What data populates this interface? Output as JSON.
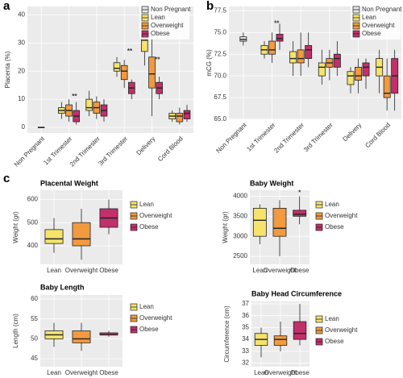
{
  "chart_data": [
    {
      "type": "box",
      "panel_label": "a",
      "y_label": "Placenta (%)",
      "categories": [
        "Non Pregnant",
        "1st Trimester",
        "2nd Trimester",
        "3rd Trimester",
        "Delivery",
        "Cord Blood"
      ],
      "ylim": [
        -2,
        43
      ],
      "yticks": [
        0,
        10,
        20,
        30,
        40
      ],
      "grid": true,
      "legend": "top-right",
      "annotations": [
        "**",
        "**",
        "**"
      ],
      "series": [
        {
          "name": "Non Pregnant",
          "color": "#e6e6e6",
          "values": [
            {
              "min": 0,
              "q1": 0,
              "median": 0,
              "q3": 0,
              "max": 0
            },
            null,
            null,
            null,
            null,
            null
          ]
        },
        {
          "name": "Lean",
          "color": "#f6e36c",
          "values": [
            null,
            {
              "min": 3,
              "q1": 5,
              "median": 6,
              "q3": 7,
              "max": 9
            },
            {
              "min": 4,
              "q1": 6,
              "median": 7,
              "q3": 10,
              "max": 13
            },
            {
              "min": 18,
              "q1": 20,
              "median": 21,
              "q3": 23,
              "max": 25
            },
            {
              "min": 22,
              "q1": 27,
              "median": 31,
              "q3": 33,
              "max": 35
            },
            {
              "min": 2,
              "q1": 3,
              "median": 4,
              "q3": 5,
              "max": 6
            }
          ]
        },
        {
          "name": "Overweight",
          "color": "#f29a3f",
          "values": [
            null,
            {
              "min": 2,
              "q1": 4,
              "median": 6,
              "q3": 8,
              "max": 10
            },
            {
              "min": 3,
              "q1": 5,
              "median": 7,
              "q3": 9,
              "max": 11
            },
            {
              "min": 14,
              "q1": 17,
              "median": 20,
              "q3": 22,
              "max": 24
            },
            {
              "min": 4,
              "q1": 14,
              "median": 19,
              "q3": 25,
              "max": 33
            },
            {
              "min": 1,
              "q1": 2,
              "median": 4,
              "q3": 5,
              "max": 7
            }
          ]
        },
        {
          "name": "Obese",
          "color": "#c2306b",
          "values": [
            null,
            {
              "min": 1,
              "q1": 2,
              "median": 4,
              "q3": 6,
              "max": 9
            },
            {
              "min": 2,
              "q1": 4,
              "median": 6,
              "q3": 8,
              "max": 10
            },
            {
              "min": 10,
              "q1": 12,
              "median": 14,
              "q3": 16,
              "max": 17
            },
            {
              "min": 10,
              "q1": 12,
              "median": 14,
              "q3": 16,
              "max": 18
            },
            {
              "min": 2,
              "q1": 3,
              "median": 5,
              "q3": 6,
              "max": 8
            }
          ]
        }
      ]
    },
    {
      "type": "box",
      "panel_label": "b",
      "y_label": "mCG (%)",
      "categories": [
        "Non Pregnant",
        "1st Trimester",
        "2nd Trimester",
        "3rd Trimester",
        "Delivery",
        "Cord Blood"
      ],
      "ylim": [
        65,
        78
      ],
      "yticks": [
        {
          "value": 65,
          "label": "65.0"
        },
        {
          "value": 67.5,
          "label": "67.5"
        },
        {
          "value": 70,
          "label": "70.0"
        },
        {
          "value": 72.5,
          "label": "72.5"
        },
        {
          "value": 75,
          "label": "75.0"
        },
        {
          "value": 77.5,
          "label": "77.5"
        }
      ],
      "grid": true,
      "legend": "top-right",
      "annotations": [
        "**"
      ],
      "series": [
        {
          "name": "Non Pregnant",
          "color": "#e6e6e6",
          "values": [
            {
              "min": 73.5,
              "q1": 74,
              "median": 74.2,
              "q3": 74.5,
              "max": 75
            },
            null,
            null,
            null,
            null,
            null
          ]
        },
        {
          "name": "Lean",
          "color": "#f6e36c",
          "values": [
            null,
            {
              "min": 72,
              "q1": 72.5,
              "median": 73,
              "q3": 73.5,
              "max": 74
            },
            {
              "min": 70,
              "q1": 71.5,
              "median": 72,
              "q3": 72.8,
              "max": 74
            },
            {
              "min": 69,
              "q1": 70,
              "median": 71,
              "q3": 71.5,
              "max": 73
            },
            {
              "min": 68,
              "q1": 69,
              "median": 70,
              "q3": 70.5,
              "max": 71
            },
            {
              "min": 68,
              "q1": 70,
              "median": 71,
              "q3": 72,
              "max": 73
            }
          ]
        },
        {
          "name": "Overweight",
          "color": "#f29a3f",
          "values": [
            null,
            {
              "min": 71.5,
              "q1": 72.5,
              "median": 73,
              "q3": 74,
              "max": 75
            },
            {
              "min": 70,
              "q1": 71.5,
              "median": 72,
              "q3": 73,
              "max": 75
            },
            {
              "min": 69.5,
              "q1": 71,
              "median": 71.5,
              "q3": 72,
              "max": 73
            },
            {
              "min": 68,
              "q1": 69.5,
              "median": 70,
              "q3": 71,
              "max": 72
            },
            {
              "min": 66,
              "q1": 67.5,
              "median": 68,
              "q3": 70,
              "max": 72
            }
          ]
        },
        {
          "name": "Obese",
          "color": "#c2306b",
          "values": [
            null,
            {
              "min": 73,
              "q1": 74,
              "median": 74.3,
              "q3": 74.8,
              "max": 76
            },
            {
              "min": 71,
              "q1": 72,
              "median": 73,
              "q3": 73.5,
              "max": 75
            },
            {
              "min": 70,
              "q1": 71,
              "median": 72,
              "q3": 72.5,
              "max": 74
            },
            {
              "min": 68.5,
              "q1": 70,
              "median": 71,
              "q3": 71.5,
              "max": 72
            },
            {
              "min": 66,
              "q1": 68,
              "median": 70,
              "q3": 72,
              "max": 73
            }
          ]
        }
      ]
    },
    {
      "type": "box",
      "panel_label": "c",
      "title": "Placental Weight",
      "y_label": "Weight (gr)",
      "categories": [
        "Lean",
        "Overweight",
        "Obese"
      ],
      "colors": [
        "#f6e36c",
        "#f29a3f",
        "#c2306b"
      ],
      "ylim": [
        320,
        640
      ],
      "yticks": [
        400,
        500,
        600
      ],
      "grid": true,
      "legend": "right",
      "values": [
        {
          "min": 370,
          "q1": 410,
          "median": 430,
          "q3": 470,
          "max": 520
        },
        {
          "min": 340,
          "q1": 400,
          "median": 430,
          "q3": 500,
          "max": 560
        },
        {
          "min": 450,
          "q1": 480,
          "median": 520,
          "q3": 560,
          "max": 600
        }
      ]
    },
    {
      "type": "box",
      "title": "Baby Weight",
      "y_label": "Weight (gr)",
      "categories": [
        "Lean",
        "Overweight",
        "Obese"
      ],
      "colors": [
        "#f6e36c",
        "#f29a3f",
        "#c2306b"
      ],
      "ylim": [
        2300,
        4150
      ],
      "yticks": [
        2500,
        3000,
        3500,
        4000
      ],
      "grid": true,
      "legend": "right",
      "annotations": [
        "*"
      ],
      "values": [
        {
          "min": 2800,
          "q1": 3000,
          "median": 3400,
          "q3": 3700,
          "max": 3800
        },
        {
          "min": 2500,
          "q1": 3000,
          "median": 3200,
          "q3": 3700,
          "max": 3900
        },
        {
          "min": 3300,
          "q1": 3500,
          "median": 3550,
          "q3": 3650,
          "max": 4000
        }
      ]
    },
    {
      "type": "box",
      "title": "Baby Length",
      "y_label": "Length (cm)",
      "categories": [
        "Lean",
        "Overweight",
        "Obese"
      ],
      "colors": [
        "#f6e36c",
        "#f29a3f",
        "#c2306b"
      ],
      "ylim": [
        43,
        61
      ],
      "yticks": [
        45,
        50,
        55,
        60
      ],
      "grid": true,
      "legend": "right",
      "values": [
        {
          "min": 48,
          "q1": 50,
          "median": 51,
          "q3": 52,
          "max": 54
        },
        {
          "min": 47,
          "q1": 49,
          "median": 50,
          "q3": 52,
          "max": 54
        },
        {
          "min": 50.5,
          "q1": 51,
          "median": 51,
          "q3": 51.5,
          "max": 52
        }
      ]
    },
    {
      "type": "box",
      "title": "Baby Head Circumference",
      "y_label": "Circumference (cm)",
      "categories": [
        "Lean",
        "Overweight",
        "Obese"
      ],
      "colors": [
        "#f6e36c",
        "#f29a3f",
        "#c2306b"
      ],
      "ylim": [
        31.7,
        37.2
      ],
      "yticks": [
        32,
        33,
        34,
        35,
        36,
        37
      ],
      "grid": true,
      "legend": "right",
      "values": [
        {
          "min": 32.5,
          "q1": 33.5,
          "median": 34,
          "q3": 34.5,
          "max": 35
        },
        {
          "min": 33,
          "q1": 33.5,
          "median": 34,
          "q3": 34.3,
          "max": 35.5
        },
        {
          "min": 33.5,
          "q1": 34,
          "median": 34.5,
          "q3": 35.5,
          "max": 37
        }
      ]
    }
  ]
}
